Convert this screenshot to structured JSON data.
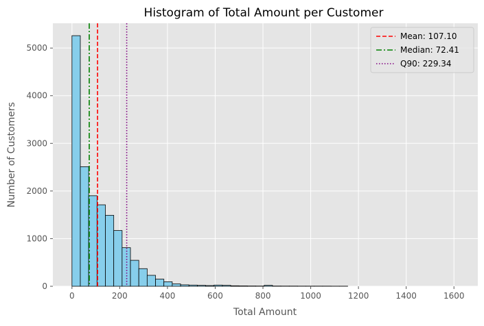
{
  "chart_data": {
    "type": "histogram",
    "title": "Histogram of Total Amount per Customer",
    "xlabel": "Total Amount",
    "ylabel": "Number of Customers",
    "xlim": [
      -80,
      1700
    ],
    "ylim": [
      0,
      5520
    ],
    "xticks": [
      0,
      200,
      400,
      600,
      800,
      1000,
      1200,
      1400,
      1600
    ],
    "yticks": [
      0,
      1000,
      2000,
      3000,
      4000,
      5000
    ],
    "grid": true,
    "legend_position": "top-right",
    "bar_color": "#87ceeb",
    "bins": [
      {
        "x0": 0,
        "x1": 35,
        "count": 5260
      },
      {
        "x0": 35,
        "x1": 70,
        "count": 2510
      },
      {
        "x0": 70,
        "x1": 105,
        "count": 1900
      },
      {
        "x0": 105,
        "x1": 140,
        "count": 1710
      },
      {
        "x0": 140,
        "x1": 175,
        "count": 1490
      },
      {
        "x0": 175,
        "x1": 210,
        "count": 1170
      },
      {
        "x0": 210,
        "x1": 245,
        "count": 810
      },
      {
        "x0": 245,
        "x1": 280,
        "count": 545
      },
      {
        "x0": 280,
        "x1": 315,
        "count": 370
      },
      {
        "x0": 315,
        "x1": 350,
        "count": 230
      },
      {
        "x0": 350,
        "x1": 385,
        "count": 150
      },
      {
        "x0": 385,
        "x1": 420,
        "count": 95
      },
      {
        "x0": 420,
        "x1": 455,
        "count": 50
      },
      {
        "x0": 455,
        "x1": 490,
        "count": 30
      },
      {
        "x0": 490,
        "x1": 525,
        "count": 25
      },
      {
        "x0": 525,
        "x1": 560,
        "count": 20
      },
      {
        "x0": 560,
        "x1": 595,
        "count": 15
      },
      {
        "x0": 595,
        "x1": 630,
        "count": 25
      },
      {
        "x0": 630,
        "x1": 665,
        "count": 20
      },
      {
        "x0": 665,
        "x1": 700,
        "count": 10
      },
      {
        "x0": 700,
        "x1": 735,
        "count": 8
      },
      {
        "x0": 735,
        "x1": 770,
        "count": 6
      },
      {
        "x0": 770,
        "x1": 805,
        "count": 5
      },
      {
        "x0": 805,
        "x1": 840,
        "count": 20
      },
      {
        "x0": 840,
        "x1": 875,
        "count": 5
      },
      {
        "x0": 875,
        "x1": 910,
        "count": 4
      },
      {
        "x0": 910,
        "x1": 945,
        "count": 4
      },
      {
        "x0": 945,
        "x1": 980,
        "count": 3
      },
      {
        "x0": 980,
        "x1": 1015,
        "count": 3
      },
      {
        "x0": 1015,
        "x1": 1050,
        "count": 3
      },
      {
        "x0": 1050,
        "x1": 1085,
        "count": 3
      },
      {
        "x0": 1085,
        "x1": 1120,
        "count": 2
      },
      {
        "x0": 1120,
        "x1": 1155,
        "count": 2
      }
    ],
    "reference_lines": [
      {
        "label": "Mean: 107.10",
        "value": 107.1,
        "color": "#ff0000",
        "dash": "6,3"
      },
      {
        "label": "Median: 72.41",
        "value": 72.41,
        "color": "#008000",
        "dash": "8,3,2,3"
      },
      {
        "label": "Q90: 229.34",
        "value": 229.34,
        "color": "#800080",
        "dash": "1.5,2.5"
      }
    ]
  }
}
